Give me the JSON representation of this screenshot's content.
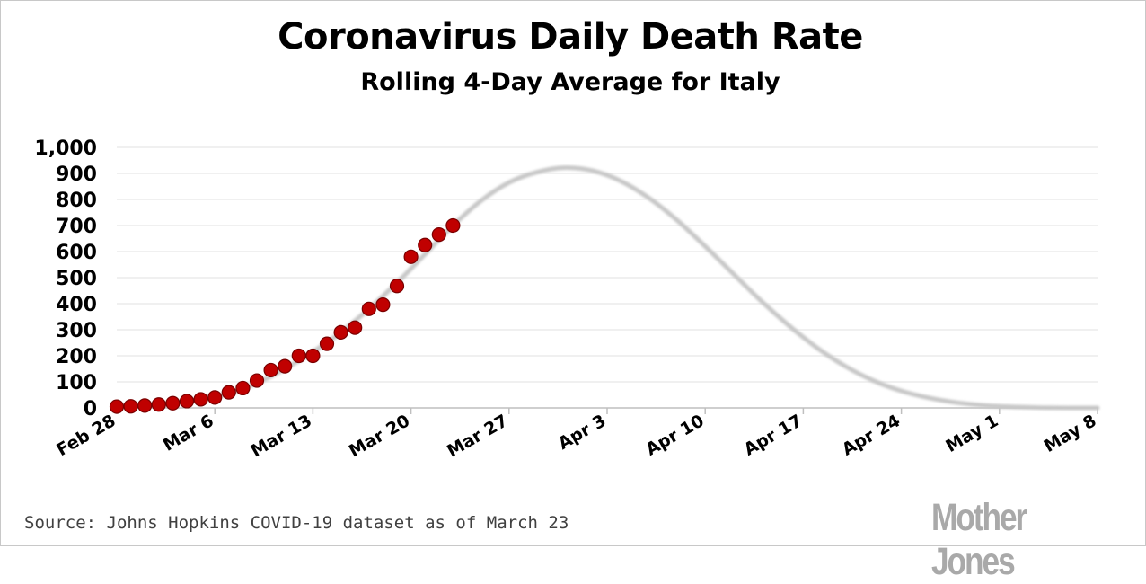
{
  "chart_data": {
    "type": "scatter",
    "title": "Coronavirus Daily Death Rate",
    "subtitle": "Rolling 4-Day Average for Italy",
    "source": "Source: Johns Hopkins COVID-19 dataset as of March 23",
    "brand": "Mother Jones",
    "xlabel": "",
    "ylabel": "",
    "x_ticks": [
      "Feb 28",
      "Mar 6",
      "Mar 13",
      "Mar 20",
      "Mar 27",
      "Apr 3",
      "Apr 10",
      "Apr 17",
      "Apr 24",
      "May 1",
      "May 8"
    ],
    "y_ticks": [
      "0",
      "100",
      "200",
      "300",
      "400",
      "500",
      "600",
      "700",
      "800",
      "900",
      "1,000"
    ],
    "ylim": [
      0,
      1000
    ],
    "xlim": [
      "Feb 28",
      "May 8"
    ],
    "grid": true,
    "series": [
      {
        "values": [
          {
            "x": "Feb 28",
            "y": 5
          },
          {
            "x": "Feb 29",
            "y": 6
          },
          {
            "x": "Mar 1",
            "y": 9
          },
          {
            "x": "Mar 2",
            "y": 13
          },
          {
            "x": "Mar 3",
            "y": 18
          },
          {
            "x": "Mar 4",
            "y": 26
          },
          {
            "x": "Mar 5",
            "y": 33
          },
          {
            "x": "Mar 6",
            "y": 40
          },
          {
            "x": "Mar 7",
            "y": 60
          },
          {
            "x": "Mar 8",
            "y": 76
          },
          {
            "x": "Mar 9",
            "y": 105
          },
          {
            "x": "Mar 10",
            "y": 145
          },
          {
            "x": "Mar 11",
            "y": 160
          },
          {
            "x": "Mar 12",
            "y": 200
          },
          {
            "x": "Mar 13",
            "y": 200
          },
          {
            "x": "Mar 14",
            "y": 246
          },
          {
            "x": "Mar 15",
            "y": 290
          },
          {
            "x": "Mar 16",
            "y": 308
          },
          {
            "x": "Mar 17",
            "y": 380
          },
          {
            "x": "Mar 18",
            "y": 396
          },
          {
            "x": "Mar 19",
            "y": 468
          },
          {
            "x": "Mar 20",
            "y": 580
          },
          {
            "x": "Mar 21",
            "y": 625
          },
          {
            "x": "Mar 22",
            "y": 665
          },
          {
            "x": "Mar 23",
            "y": 700
          }
        ]
      },
      {
        "type": "line",
        "values": [
          {
            "x": "Feb 28",
            "y": 5
          },
          {
            "x": "Mar 1",
            "y": 10
          },
          {
            "x": "Mar 3",
            "y": 18
          },
          {
            "x": "Mar 5",
            "y": 32
          },
          {
            "x": "Mar 7",
            "y": 55
          },
          {
            "x": "Mar 9",
            "y": 95
          },
          {
            "x": "Mar 11",
            "y": 150
          },
          {
            "x": "Mar 13",
            "y": 215
          },
          {
            "x": "Mar 15",
            "y": 290
          },
          {
            "x": "Mar 17",
            "y": 380
          },
          {
            "x": "Mar 19",
            "y": 480
          },
          {
            "x": "Mar 21",
            "y": 590
          },
          {
            "x": "Mar 23",
            "y": 700
          },
          {
            "x": "Mar 25",
            "y": 795
          },
          {
            "x": "Mar 27",
            "y": 865
          },
          {
            "x": "Mar 29",
            "y": 905
          },
          {
            "x": "Mar 31",
            "y": 922
          },
          {
            "x": "Apr 2",
            "y": 910
          },
          {
            "x": "Apr 4",
            "y": 870
          },
          {
            "x": "Apr 6",
            "y": 805
          },
          {
            "x": "Apr 8",
            "y": 720
          },
          {
            "x": "Apr 10",
            "y": 620
          },
          {
            "x": "Apr 12",
            "y": 515
          },
          {
            "x": "Apr 14",
            "y": 410
          },
          {
            "x": "Apr 16",
            "y": 315
          },
          {
            "x": "Apr 18",
            "y": 230
          },
          {
            "x": "Apr 20",
            "y": 160
          },
          {
            "x": "Apr 22",
            "y": 105
          },
          {
            "x": "Apr 24",
            "y": 65
          },
          {
            "x": "Apr 26",
            "y": 38
          },
          {
            "x": "Apr 28",
            "y": 20
          },
          {
            "x": "Apr 30",
            "y": 9
          },
          {
            "x": "May 2",
            "y": 4
          },
          {
            "x": "May 4",
            "y": 1
          },
          {
            "x": "May 6",
            "y": 0
          },
          {
            "x": "May 8",
            "y": 0
          }
        ]
      }
    ],
    "colors": {
      "dots": "#c00000",
      "dot_outline": "#7a0000",
      "curve": "#c8c8c8",
      "grid": "#e2e2e2",
      "axis": "#bfbfbf"
    }
  }
}
